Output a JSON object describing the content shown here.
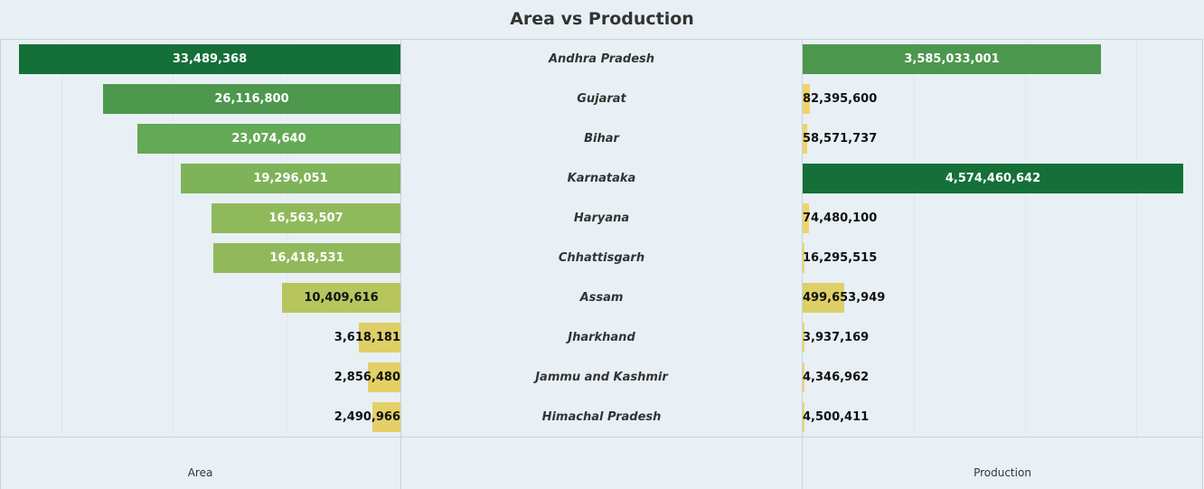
{
  "chart_data": {
    "type": "bar",
    "title": "Area vs Production",
    "categories": [
      "Andhra Pradesh",
      "Gujarat",
      "Bihar",
      "Karnataka",
      "Haryana",
      "Chhattisgarh",
      "Assam",
      "Jharkhand",
      "Jammu and Kashmir",
      "Himachal Pradesh"
    ],
    "series": [
      {
        "name": "Area",
        "values": [
          33489368,
          26116800,
          23074640,
          19296051,
          16563507,
          16418531,
          10409616,
          3618181,
          2856480,
          2490966
        ],
        "labels": [
          "33,489,368",
          "26,116,800",
          "23,074,640",
          "19,296,051",
          "16,563,507",
          "16,418,531",
          "10,409,616",
          "3,618,181",
          "2,856,480",
          "2,490,966"
        ]
      },
      {
        "name": "Production",
        "values": [
          3585033001,
          82395600,
          58571737,
          4574460642,
          74480100,
          16295515,
          499653949,
          3937169,
          4346962,
          4500411
        ],
        "labels": [
          "3,585,033,001",
          "82,395,600",
          "58,571,737",
          "4,574,460,642",
          "74,480,100",
          "16,295,515",
          "499,653,949",
          "3,937,169",
          "4,346,962",
          "4,500,411"
        ]
      }
    ],
    "xlabel_left": "Area",
    "xlabel_right": "Production",
    "color_scale": [
      "#f3d46b",
      "#b3c45d",
      "#6aad58",
      "#156f38"
    ],
    "grid": true
  }
}
